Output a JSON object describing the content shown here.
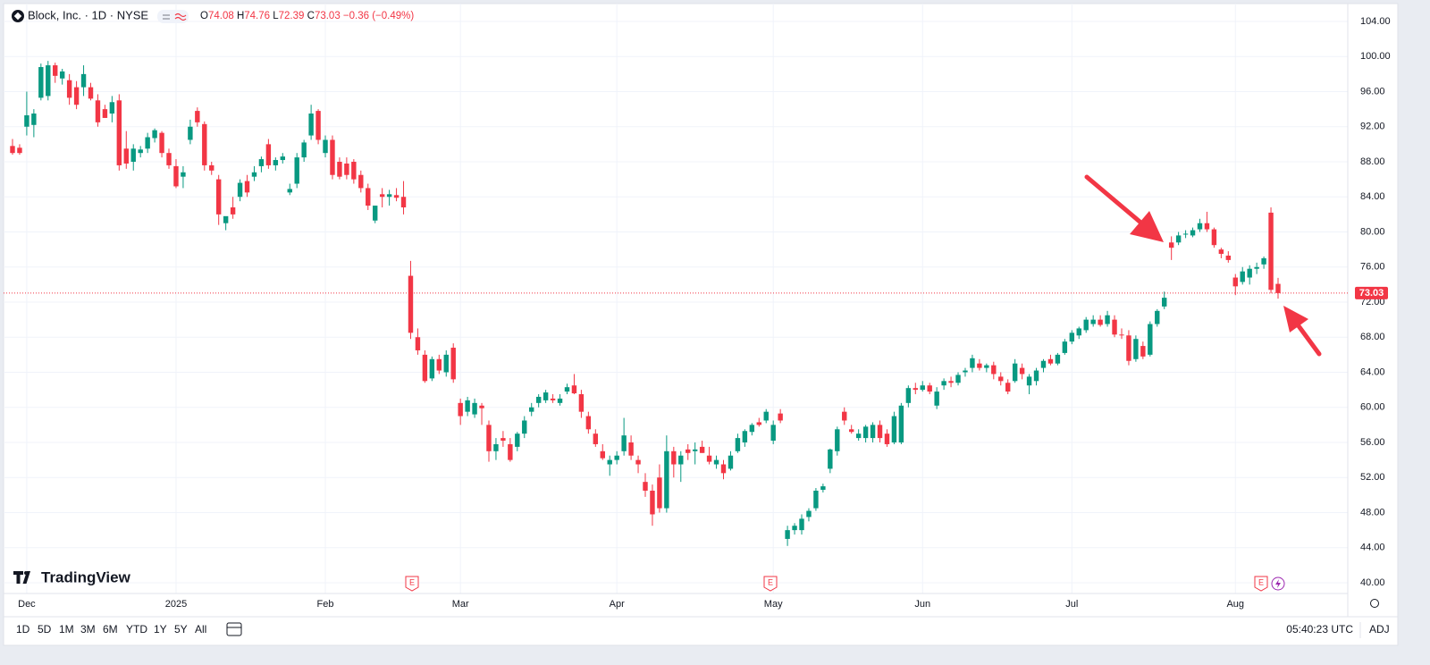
{
  "header": {
    "symbol": "Block, Inc. · 1D · NYSE",
    "ohlc": [
      {
        "label": "O",
        "value": "74.08"
      },
      {
        "label": "H",
        "value": "74.76"
      },
      {
        "label": "L",
        "value": "72.39"
      },
      {
        "label": "C",
        "value": "73.03"
      }
    ],
    "change": "−0.36 (−0.49%)"
  },
  "chart_data": {
    "type": "candlestick",
    "up_color": "#089981",
    "down_color": "#f23645",
    "grid": true,
    "categories": [
      null,
      null,
      "Dec",
      null,
      null,
      null,
      null,
      null,
      null,
      null,
      null,
      null,
      null,
      null,
      null,
      null,
      null,
      null,
      null,
      null,
      null,
      null,
      null,
      "2025",
      null,
      null,
      null,
      null,
      null,
      null,
      null,
      null,
      null,
      null,
      null,
      null,
      null,
      null,
      null,
      null,
      null,
      null,
      null,
      null,
      "Feb",
      null,
      null,
      null,
      null,
      null,
      null,
      null,
      null,
      null,
      null,
      null,
      null,
      null,
      null,
      null,
      null,
      null,
      null,
      "Mar",
      null,
      null,
      null,
      null,
      null,
      null,
      null,
      null,
      null,
      null,
      null,
      null,
      null,
      null,
      null,
      null,
      null,
      null,
      null,
      null,
      null,
      "Apr",
      null,
      null,
      null,
      null,
      null,
      null,
      null,
      null,
      null,
      null,
      null,
      null,
      null,
      null,
      null,
      null,
      null,
      null,
      null,
      null,
      null,
      "May",
      null,
      null,
      null,
      null,
      null,
      null,
      null,
      null,
      null,
      null,
      null,
      null,
      null,
      null,
      null,
      null,
      null,
      null,
      null,
      null,
      "Jun",
      null,
      null,
      null,
      null,
      null,
      null,
      null,
      null,
      null,
      null,
      null,
      null,
      null,
      null,
      null,
      null,
      null,
      null,
      null,
      null,
      "Jul",
      null,
      null,
      null,
      null,
      null,
      null,
      null,
      null,
      null,
      null,
      null,
      null,
      null,
      null,
      null,
      null,
      null,
      null,
      null,
      null,
      null,
      null,
      "Aug",
      null,
      null,
      null,
      null,
      null,
      null
    ],
    "open": [
      89.8,
      89.6,
      92.0,
      92.2,
      95.3,
      95.5,
      99.0,
      97.5,
      97.3,
      96.5,
      96.5,
      96.5,
      95.0,
      94.0,
      93.5,
      95.0,
      89.5,
      88.0,
      89.0,
      89.5,
      90.7,
      91.3,
      89.0,
      87.5,
      86.3,
      90.5,
      93.8,
      92.3,
      87.6,
      86.0,
      81.0,
      82.8,
      84.0,
      85.8,
      86.3,
      87.5,
      90.0,
      87.6,
      88.2,
      84.5,
      85.5,
      88.5,
      91.0,
      93.8,
      89.0,
      90.5,
      88.0,
      87.8,
      88.0,
      86.5,
      85.0,
      81.3,
      84.3,
      84.0,
      84.2,
      84.0,
      75.0,
      68.0,
      66.0,
      63.3,
      65.5,
      64.0,
      66.8,
      60.5,
      59.5,
      59.2,
      60.2,
      58.0,
      55.0,
      56.5,
      55.8,
      55.5,
      57.0,
      59.5,
      60.5,
      60.8,
      61.0,
      60.5,
      61.8,
      62.5,
      61.5,
      59.0,
      57.0,
      55.0,
      53.5,
      54.0,
      55.0,
      56.0,
      54.0,
      51.5,
      50.5,
      52.0,
      48.5,
      55.0,
      53.5,
      55.2,
      55.0,
      55.5,
      54.5,
      53.5,
      53.5,
      53.0,
      55.0,
      56.0,
      57.2,
      58.3,
      58.5,
      56.2,
      59.3,
      45.0,
      46.0,
      46.0,
      47.5,
      48.5,
      50.6,
      53.0,
      55.0,
      59.5,
      57.5,
      56.5,
      56.5,
      56.5,
      58.0,
      57.0,
      56.0,
      56.0,
      60.5,
      62.2,
      62.0,
      62.5,
      60.2,
      62.5,
      63.0,
      62.8,
      64.0,
      64.5,
      65.0,
      64.5,
      64.8,
      63.5,
      62.8,
      63.0,
      64.5,
      62.5,
      63.0,
      64.5,
      65.5,
      65.0,
      66.2,
      67.5,
      68.2,
      68.8,
      69.5,
      70.0,
      69.5,
      70.0,
      68.3,
      68.2,
      65.5,
      67.0,
      66.0,
      69.5,
      71.5,
      78.8,
      78.8,
      79.8,
      79.6,
      80.3,
      81.0,
      80.3,
      78.0,
      77.3,
      74.8,
      74.3,
      74.8,
      75.8,
      76.3,
      82.2,
      74.08
    ],
    "high": [
      90.6,
      90.0,
      96.0,
      94.0,
      99.2,
      99.5,
      99.3,
      98.6,
      98.0,
      97.2,
      99.0,
      97.0,
      95.7,
      94.5,
      95.5,
      95.7,
      91.5,
      90.0,
      89.8,
      91.3,
      91.8,
      91.5,
      89.5,
      88.3,
      87.5,
      92.8,
      94.2,
      92.6,
      88.0,
      86.5,
      81.5,
      84.0,
      86.0,
      86.5,
      87.5,
      88.6,
      90.6,
      88.5,
      89.0,
      85.5,
      89.0,
      90.5,
      94.5,
      94.0,
      91.0,
      91.0,
      88.5,
      88.5,
      88.3,
      87.0,
      85.5,
      83.0,
      85.0,
      84.8,
      85.0,
      85.8,
      76.7,
      69.0,
      66.5,
      65.8,
      66.0,
      66.5,
      67.3,
      61.0,
      61.2,
      61.0,
      60.5,
      58.5,
      56.5,
      57.3,
      56.5,
      57.2,
      59.0,
      60.5,
      61.5,
      62.0,
      61.5,
      61.5,
      62.7,
      63.8,
      62.0,
      59.5,
      57.5,
      55.8,
      54.5,
      55.0,
      58.8,
      56.8,
      54.5,
      52.5,
      51.2,
      53.5,
      56.8,
      55.5,
      55.0,
      55.8,
      56.0,
      56.2,
      55.5,
      54.5,
      54.0,
      55.0,
      57.0,
      57.5,
      58.2,
      58.8,
      59.8,
      58.5,
      59.8,
      46.5,
      46.8,
      47.8,
      48.5,
      50.8,
      51.3,
      55.3,
      57.8,
      60.0,
      58.0,
      57.5,
      58.0,
      58.3,
      58.5,
      57.5,
      59.5,
      60.5,
      62.5,
      62.8,
      63.0,
      62.8,
      62.3,
      63.3,
      63.5,
      64.0,
      64.5,
      66.0,
      65.5,
      65.0,
      65.2,
      64.0,
      63.2,
      65.5,
      65.0,
      63.8,
      64.5,
      65.5,
      66.0,
      66.2,
      67.8,
      68.8,
      69.2,
      70.3,
      70.5,
      70.5,
      71.0,
      70.5,
      69.0,
      68.8,
      68.2,
      67.5,
      69.8,
      71.2,
      73.2,
      79.5,
      80.0,
      80.2,
      80.5,
      81.5,
      82.3,
      80.5,
      78.2,
      77.8,
      75.2,
      76.0,
      76.2,
      76.5,
      77.2,
      82.8,
      74.76
    ],
    "low": [
      88.8,
      88.8,
      91.0,
      90.8,
      95.0,
      95.0,
      97.0,
      96.8,
      94.5,
      94.0,
      95.5,
      95.0,
      92.0,
      93.0,
      92.5,
      87.0,
      87.2,
      87.0,
      88.5,
      89.0,
      90.2,
      88.5,
      87.2,
      85.0,
      85.0,
      90.0,
      92.0,
      87.0,
      86.5,
      80.8,
      80.2,
      81.5,
      83.5,
      84.0,
      85.8,
      86.8,
      87.2,
      87.0,
      87.8,
      84.2,
      85.0,
      88.0,
      90.5,
      90.0,
      88.5,
      86.0,
      86.0,
      86.0,
      85.5,
      84.5,
      82.5,
      81.0,
      82.8,
      83.0,
      83.5,
      82.0,
      67.8,
      66.0,
      62.8,
      63.0,
      63.8,
      63.5,
      62.8,
      58.0,
      59.0,
      58.8,
      58.0,
      53.8,
      54.0,
      55.5,
      53.8,
      55.0,
      56.5,
      59.0,
      60.0,
      60.5,
      60.5,
      60.2,
      61.5,
      61.5,
      58.8,
      57.0,
      55.5,
      54.0,
      52.2,
      53.5,
      54.5,
      54.0,
      52.5,
      49.8,
      46.5,
      48.0,
      48.0,
      52.0,
      51.5,
      54.0,
      53.5,
      54.8,
      53.5,
      53.0,
      51.8,
      52.8,
      54.8,
      55.5,
      56.8,
      57.8,
      58.2,
      55.8,
      58.2,
      44.2,
      45.5,
      45.5,
      47.0,
      48.2,
      50.3,
      52.5,
      54.5,
      58.0,
      57.0,
      56.2,
      56.0,
      56.0,
      56.0,
      55.5,
      55.8,
      55.8,
      60.0,
      61.5,
      61.8,
      61.5,
      59.8,
      62.0,
      62.3,
      62.5,
      63.5,
      64.0,
      64.2,
      64.0,
      63.2,
      62.5,
      61.5,
      62.8,
      63.2,
      61.5,
      62.5,
      64.0,
      64.8,
      64.8,
      66.0,
      67.2,
      67.8,
      68.5,
      69.2,
      69.2,
      69.2,
      68.0,
      67.8,
      64.8,
      65.2,
      65.5,
      65.8,
      69.2,
      71.2,
      76.8,
      78.5,
      79.3,
      79.4,
      80.0,
      80.0,
      78.2,
      77.0,
      76.5,
      72.8,
      74.0,
      74.0,
      75.2,
      75.8,
      73.0,
      72.39
    ],
    "close": [
      89.0,
      89.0,
      93.3,
      93.5,
      98.8,
      99.0,
      97.8,
      98.3,
      95.3,
      94.5,
      98.0,
      95.2,
      92.5,
      93.0,
      94.8,
      87.6,
      87.8,
      89.5,
      89.4,
      90.8,
      91.6,
      89.0,
      87.6,
      85.2,
      86.8,
      92.0,
      92.5,
      87.6,
      87.0,
      82.0,
      81.8,
      82.0,
      85.6,
      84.5,
      86.8,
      88.3,
      87.6,
      88.2,
      88.6,
      84.9,
      88.5,
      90.2,
      93.5,
      90.5,
      90.5,
      86.5,
      86.3,
      86.5,
      86.0,
      85.0,
      83.0,
      83.0,
      84.0,
      84.3,
      83.9,
      82.8,
      68.5,
      66.5,
      63.0,
      65.5,
      64.2,
      66.0,
      63.2,
      59.0,
      60.8,
      60.5,
      59.9,
      55.0,
      55.8,
      56.2,
      54.0,
      57.0,
      58.5,
      60.0,
      61.2,
      61.7,
      60.8,
      61.0,
      62.3,
      61.6,
      59.5,
      57.5,
      55.8,
      54.2,
      54.0,
      54.5,
      56.8,
      54.5,
      53.5,
      50.5,
      47.8,
      48.5,
      55.0,
      53.5,
      54.5,
      54.8,
      55.2,
      54.8,
      53.8,
      54.0,
      52.5,
      54.5,
      56.5,
      57.3,
      58.0,
      58.0,
      59.5,
      58.0,
      58.5,
      46.0,
      46.5,
      47.3,
      48.2,
      50.5,
      51.0,
      55.2,
      57.5,
      58.5,
      57.2,
      57.0,
      57.8,
      58.0,
      56.5,
      55.8,
      59.0,
      60.2,
      62.2,
      62.0,
      62.5,
      61.8,
      61.8,
      63.0,
      62.8,
      63.7,
      64.2,
      65.6,
      64.5,
      64.8,
      63.8,
      63.0,
      61.8,
      65.0,
      63.8,
      63.5,
      64.2,
      65.3,
      65.0,
      66.0,
      67.5,
      68.5,
      69.0,
      70.0,
      70.0,
      69.4,
      70.5,
      68.3,
      68.2,
      65.3,
      67.8,
      65.8,
      69.5,
      71.0,
      72.5,
      78.2,
      79.6,
      79.8,
      80.2,
      81.0,
      80.3,
      78.5,
      77.5,
      76.8,
      73.8,
      75.5,
      75.8,
      76.0,
      77.0,
      73.4,
      73.03
    ],
    "last_price": 73.03,
    "ylim": [
      40,
      104
    ],
    "yticks": [
      {
        "value": 104,
        "label": "104.00"
      },
      {
        "value": 100,
        "label": "100.00"
      },
      {
        "value": 96,
        "label": "96.00"
      },
      {
        "value": 92,
        "label": "92.00"
      },
      {
        "value": 88,
        "label": "88.00"
      },
      {
        "value": 84,
        "label": "84.00"
      },
      {
        "value": 80,
        "label": "80.00"
      },
      {
        "value": 76,
        "label": "76.00"
      },
      {
        "value": 72,
        "label": "72.00"
      },
      {
        "value": 68,
        "label": "68.00"
      },
      {
        "value": 64,
        "label": "64.00"
      },
      {
        "value": 60,
        "label": "60.00"
      },
      {
        "value": 56,
        "label": "56.00"
      },
      {
        "value": 52,
        "label": "52.00"
      },
      {
        "value": 48,
        "label": "48.00"
      },
      {
        "value": 44,
        "label": "44.00"
      },
      {
        "value": 40,
        "label": "40.00"
      }
    ],
    "markers": [
      "E",
      "E",
      "E"
    ]
  },
  "branding": "TradingView",
  "toolbar": {
    "ranges": [
      "1D",
      "5D",
      "1M",
      "3M",
      "6M",
      "YTD",
      "1Y",
      "5Y",
      "All"
    ],
    "clock": "05:40:23 UTC",
    "adj": "ADJ"
  }
}
